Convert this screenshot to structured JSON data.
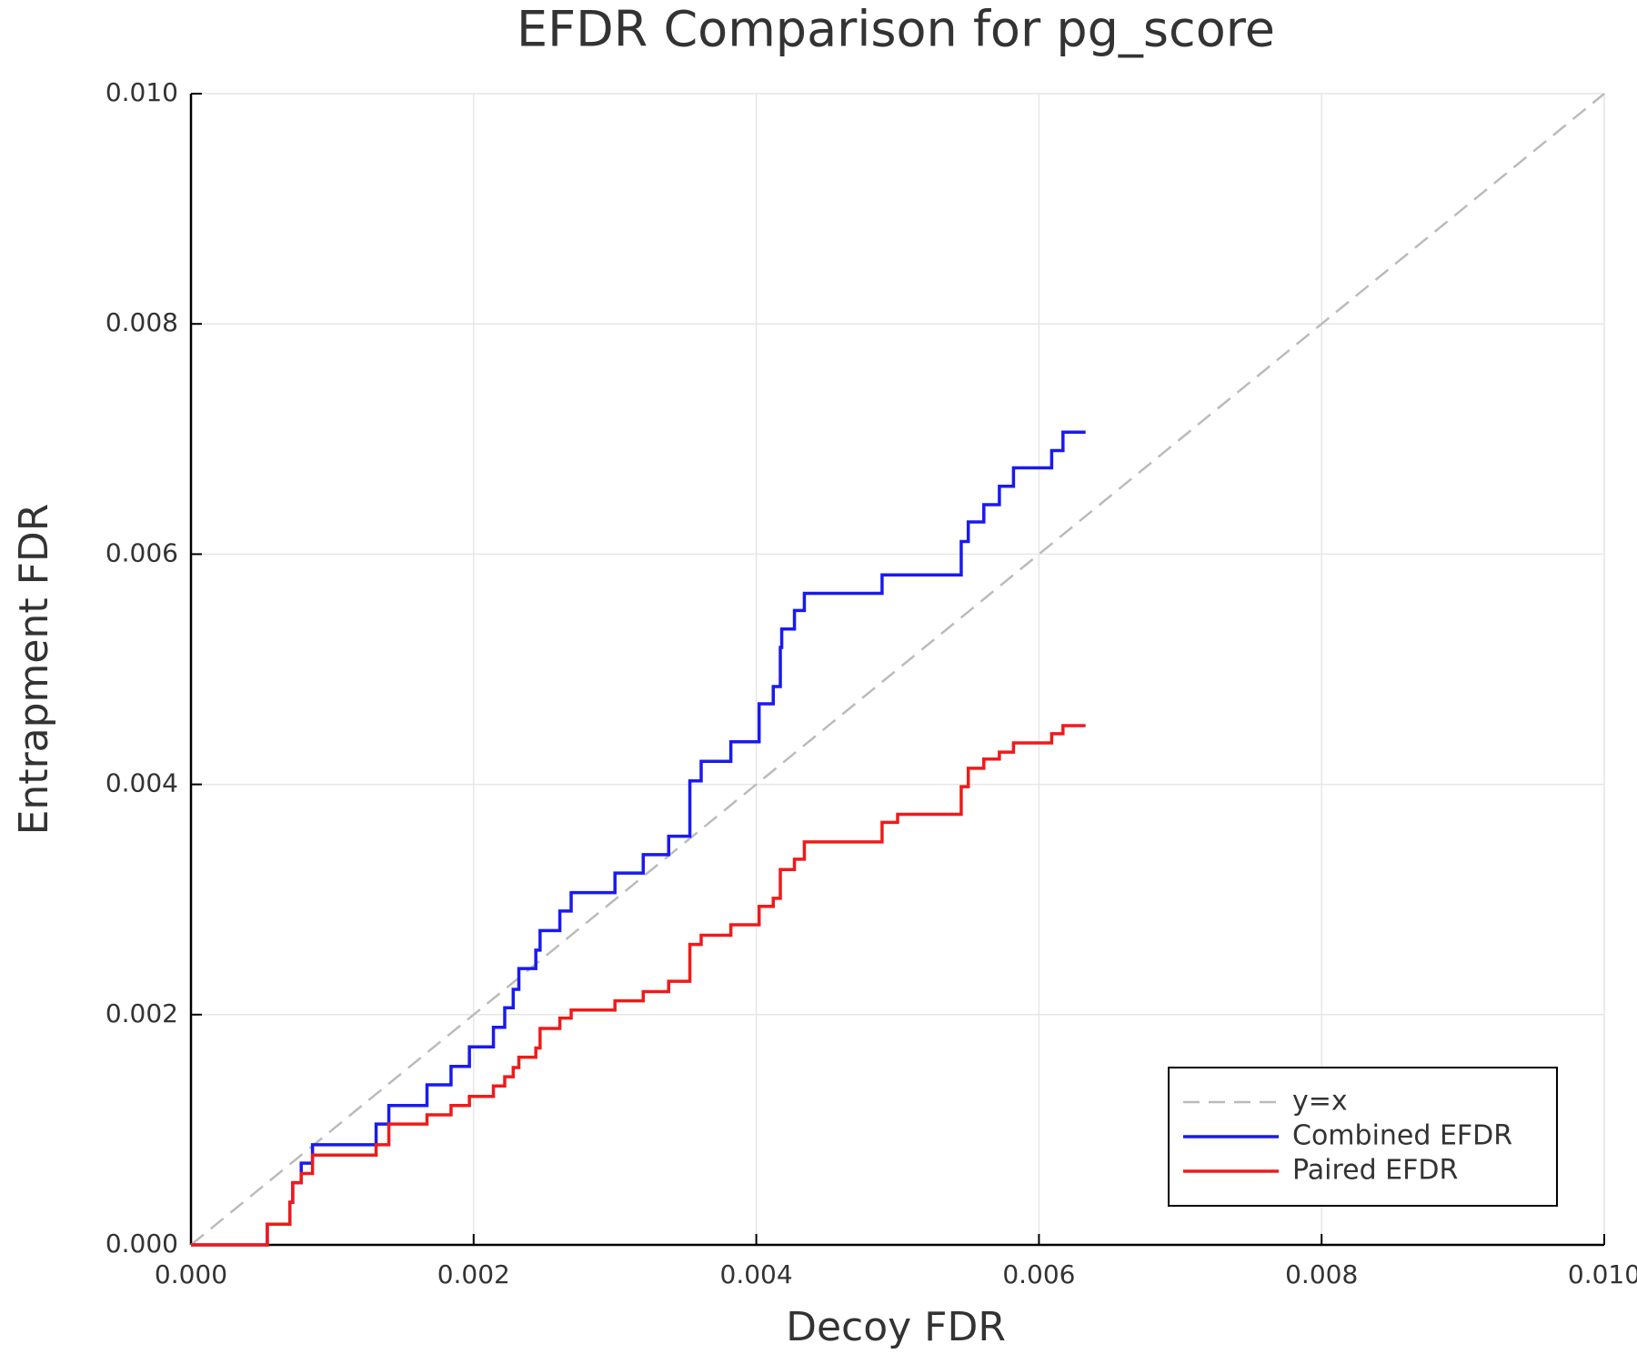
{
  "chart_data": {
    "type": "line",
    "title": "EFDR Comparison for pg_score",
    "x_label": "Decoy FDR",
    "y_label": "Entrapment FDR",
    "xlim": [
      0,
      0.01
    ],
    "ylim": [
      0,
      0.01
    ],
    "xticks": [
      {
        "value": 0,
        "label": "0.000"
      },
      {
        "value": 0.002,
        "label": "0.002"
      },
      {
        "value": 0.004,
        "label": "0.004"
      },
      {
        "value": 0.006,
        "label": "0.006"
      },
      {
        "value": 0.008,
        "label": "0.008"
      },
      {
        "value": 0.01,
        "label": "0.010"
      }
    ],
    "yticks": [
      {
        "value": 0,
        "label": "0.000"
      },
      {
        "value": 0.002,
        "label": "0.002"
      },
      {
        "value": 0.004,
        "label": "0.004"
      },
      {
        "value": 0.006,
        "label": "0.006"
      },
      {
        "value": 0.008,
        "label": "0.008"
      },
      {
        "value": 0.01,
        "label": "0.010"
      }
    ],
    "grid": true,
    "legend_position": "bottom right",
    "series": [
      {
        "name": "y=x",
        "color": "#bbbbbb",
        "dashed": true,
        "x": [
          0,
          0.01
        ],
        "values": [
          0,
          0.01
        ]
      },
      {
        "name": "Combined EFDR",
        "color": "#1a1af0",
        "dashed": false,
        "x": [
          0,
          0.00054,
          0.00054,
          0.0007,
          0.0007,
          0.00072,
          0.00072,
          0.00078,
          0.00078,
          0.00086,
          0.00086,
          0.00131,
          0.00131,
          0.0014,
          0.0014,
          0.00167,
          0.00167,
          0.00184,
          0.00184,
          0.00197,
          0.00197,
          0.00214,
          0.00214,
          0.00222,
          0.00222,
          0.00228,
          0.00228,
          0.00232,
          0.00232,
          0.00244,
          0.00244,
          0.00247,
          0.00247,
          0.00261,
          0.00261,
          0.00269,
          0.00269,
          0.003,
          0.003,
          0.0032,
          0.0032,
          0.00338,
          0.00338,
          0.00353,
          0.00353,
          0.00361,
          0.00361,
          0.00382,
          0.00382,
          0.00402,
          0.00402,
          0.00412,
          0.00412,
          0.00417,
          0.00417,
          0.00418,
          0.00418,
          0.00427,
          0.00427,
          0.00434,
          0.00434,
          0.00489,
          0.00489,
          0.00545,
          0.00545,
          0.0055,
          0.0055,
          0.00561,
          0.00561,
          0.00572,
          0.00572,
          0.00582,
          0.00582,
          0.00609,
          0.00609,
          0.00617,
          0.00617,
          0.00633
        ],
        "values": [
          0,
          0,
          0.00018,
          0.00018,
          0.00037,
          0.00037,
          0.00054,
          0.00054,
          0.00071,
          0.00071,
          0.00087,
          0.00087,
          0.00105,
          0.00105,
          0.00121,
          0.00121,
          0.00139,
          0.00139,
          0.00155,
          0.00155,
          0.00172,
          0.00172,
          0.00189,
          0.00189,
          0.00206,
          0.00206,
          0.00222,
          0.00222,
          0.0024,
          0.0024,
          0.00256,
          0.00256,
          0.00273,
          0.00273,
          0.0029,
          0.0029,
          0.00306,
          0.00306,
          0.00323,
          0.00323,
          0.00339,
          0.00339,
          0.00355,
          0.00355,
          0.00403,
          0.00403,
          0.0042,
          0.0042,
          0.00437,
          0.00437,
          0.0047,
          0.0047,
          0.00485,
          0.00485,
          0.00519,
          0.00519,
          0.00535,
          0.00535,
          0.00551,
          0.00551,
          0.00566,
          0.00566,
          0.00582,
          0.00582,
          0.00611,
          0.00611,
          0.00628,
          0.00628,
          0.00643,
          0.00643,
          0.00659,
          0.00659,
          0.00675,
          0.00675,
          0.0069,
          0.0069,
          0.00706,
          0.00706
        ]
      },
      {
        "name": "Paired EFDR",
        "color": "#f01a1a",
        "dashed": false,
        "x": [
          0,
          0.00054,
          0.00054,
          0.0007,
          0.0007,
          0.00072,
          0.00072,
          0.00078,
          0.00078,
          0.00086,
          0.00086,
          0.00131,
          0.00131,
          0.0014,
          0.0014,
          0.00167,
          0.00167,
          0.00184,
          0.00184,
          0.00197,
          0.00197,
          0.00214,
          0.00214,
          0.00222,
          0.00222,
          0.00228,
          0.00228,
          0.00232,
          0.00232,
          0.00244,
          0.00244,
          0.00247,
          0.00247,
          0.00261,
          0.00261,
          0.00269,
          0.00269,
          0.003,
          0.003,
          0.0032,
          0.0032,
          0.00338,
          0.00338,
          0.00353,
          0.00353,
          0.00361,
          0.00361,
          0.00382,
          0.00382,
          0.00402,
          0.00402,
          0.00412,
          0.00412,
          0.00417,
          0.00417,
          0.00427,
          0.00427,
          0.00434,
          0.00434,
          0.00489,
          0.00489,
          0.005,
          0.005,
          0.00545,
          0.00545,
          0.0055,
          0.0055,
          0.00561,
          0.00561,
          0.00572,
          0.00572,
          0.00582,
          0.00582,
          0.00609,
          0.00609,
          0.00617,
          0.00617,
          0.00633
        ],
        "values": [
          0,
          0,
          0.00018,
          0.00018,
          0.00037,
          0.00037,
          0.00054,
          0.00054,
          0.00062,
          0.00062,
          0.00078,
          0.00078,
          0.00087,
          0.00087,
          0.00105,
          0.00105,
          0.00113,
          0.00113,
          0.00121,
          0.00121,
          0.00129,
          0.00129,
          0.00138,
          0.00138,
          0.00146,
          0.00146,
          0.00154,
          0.00154,
          0.00163,
          0.00163,
          0.00171,
          0.00171,
          0.00188,
          0.00188,
          0.00197,
          0.00197,
          0.00204,
          0.00204,
          0.00212,
          0.00212,
          0.0022,
          0.0022,
          0.00229,
          0.00229,
          0.00261,
          0.00261,
          0.00269,
          0.00269,
          0.00278,
          0.00278,
          0.00294,
          0.00294,
          0.00301,
          0.00301,
          0.00326,
          0.00326,
          0.00335,
          0.00335,
          0.0035,
          0.0035,
          0.00367,
          0.00367,
          0.00374,
          0.00374,
          0.00398,
          0.00398,
          0.00414,
          0.00414,
          0.00422,
          0.00422,
          0.00428,
          0.00428,
          0.00436,
          0.00436,
          0.00444,
          0.00444,
          0.00451,
          0.00451
        ]
      }
    ]
  }
}
